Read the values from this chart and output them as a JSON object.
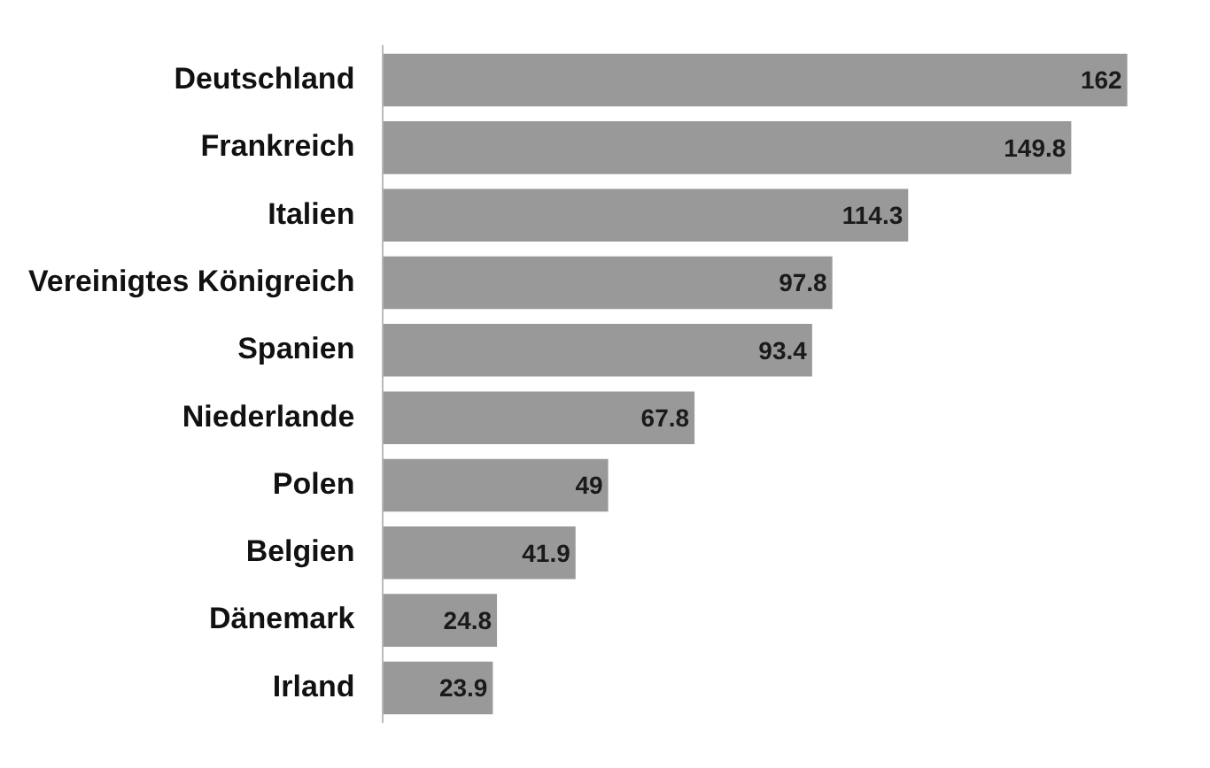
{
  "chart_data": {
    "type": "bar",
    "orientation": "horizontal",
    "categories": [
      "Deutschland",
      "Frankreich",
      "Italien",
      "Vereinigtes Königreich",
      "Spanien",
      "Niederlande",
      "Polen",
      "Belgien",
      "Dänemark",
      "Irland"
    ],
    "values": [
      162,
      149.8,
      114.3,
      97.8,
      93.4,
      67.8,
      49,
      41.9,
      24.8,
      23.9
    ],
    "color": "#999999",
    "data_labels": true
  }
}
